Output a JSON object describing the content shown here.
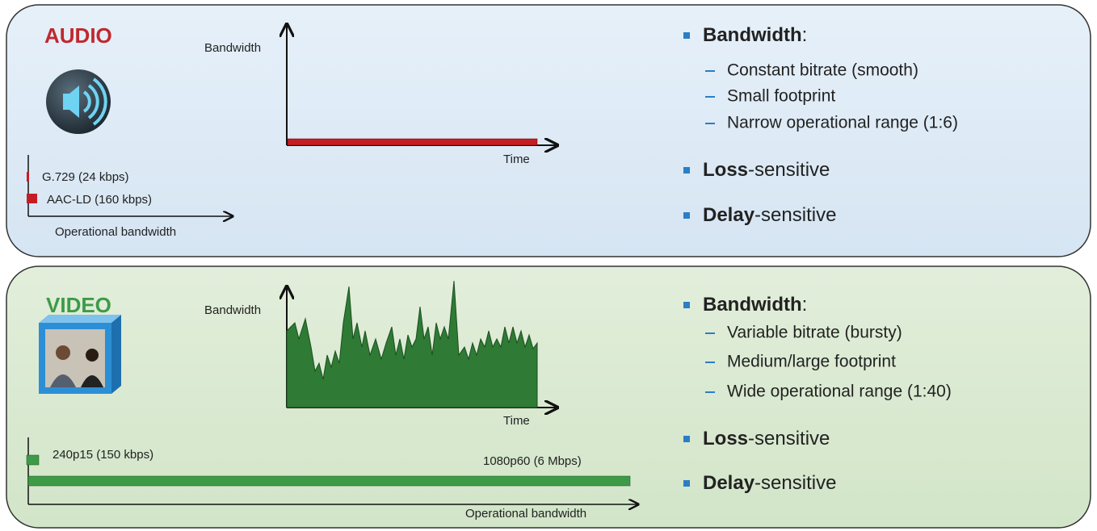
{
  "panels": [
    {
      "title": "AUDIO",
      "y_axis_label": "Bandwidth",
      "x_axis_label": "Time",
      "range_items": [
        "G.729 (24 kbps)",
        "AAC-LD (160 kbps)"
      ],
      "range_axis_label": "Operational bandwidth",
      "bullets": [
        {
          "bold": "Bandwidth",
          "rest": ":",
          "sub": [
            "Constant bitrate (smooth)",
            "Small footprint",
            "Narrow operational range (1:6)"
          ]
        },
        {
          "bold": "Loss",
          "rest": "-sensitive"
        },
        {
          "bold": "Delay",
          "rest": "-sensitive"
        }
      ]
    },
    {
      "title": "VIDEO",
      "y_axis_label": "Bandwidth",
      "x_axis_label": "Time",
      "range_items": [
        "240p15 (150 kbps)",
        "1080p60 (6 Mbps)"
      ],
      "range_axis_label": "Operational bandwidth",
      "bullets": [
        {
          "bold": "Bandwidth",
          "rest": ":",
          "sub": [
            "Variable bitrate (bursty)",
            "Medium/large footprint",
            "Wide operational range (1:40)"
          ]
        },
        {
          "bold": "Loss",
          "rest": "-sensitive"
        },
        {
          "bold": "Delay",
          "rest": "-sensitive"
        }
      ]
    }
  ]
}
